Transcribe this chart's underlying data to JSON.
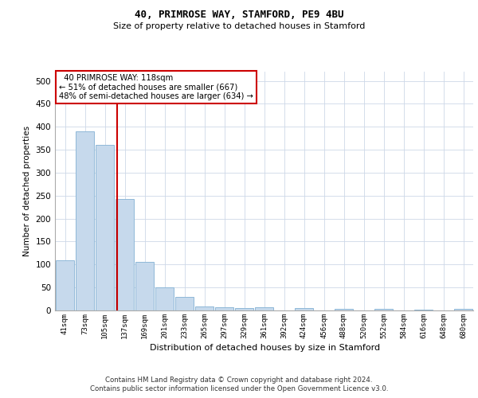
{
  "title1": "40, PRIMROSE WAY, STAMFORD, PE9 4BU",
  "title2": "Size of property relative to detached houses in Stamford",
  "xlabel": "Distribution of detached houses by size in Stamford",
  "ylabel": "Number of detached properties",
  "footnote1": "Contains HM Land Registry data © Crown copyright and database right 2024.",
  "footnote2": "Contains public sector information licensed under the Open Government Licence v3.0.",
  "annotation_line1": "  40 PRIMROSE WAY: 118sqm  ",
  "annotation_line2": "← 51% of detached houses are smaller (667)",
  "annotation_line3": "48% of semi-detached houses are larger (634) →",
  "bar_color": "#c6d9ec",
  "bar_edge_color": "#8fb8d8",
  "redline_color": "#cc0000",
  "annotation_box_color": "#cc0000",
  "categories": [
    "41sqm",
    "73sqm",
    "105sqm",
    "137sqm",
    "169sqm",
    "201sqm",
    "233sqm",
    "265sqm",
    "297sqm",
    "329sqm",
    "361sqm",
    "392sqm",
    "424sqm",
    "456sqm",
    "488sqm",
    "520sqm",
    "552sqm",
    "584sqm",
    "616sqm",
    "648sqm",
    "680sqm"
  ],
  "values": [
    110,
    390,
    360,
    242,
    105,
    50,
    29,
    9,
    7,
    5,
    7,
    0,
    5,
    0,
    3,
    0,
    4,
    0,
    2,
    0,
    4
  ],
  "ylim": [
    0,
    520
  ],
  "yticks": [
    0,
    50,
    100,
    150,
    200,
    250,
    300,
    350,
    400,
    450,
    500
  ],
  "redline_x": 2.62,
  "figsize": [
    6.0,
    5.0
  ],
  "dpi": 100,
  "background_color": "#ffffff",
  "grid_color": "#cdd8e8"
}
